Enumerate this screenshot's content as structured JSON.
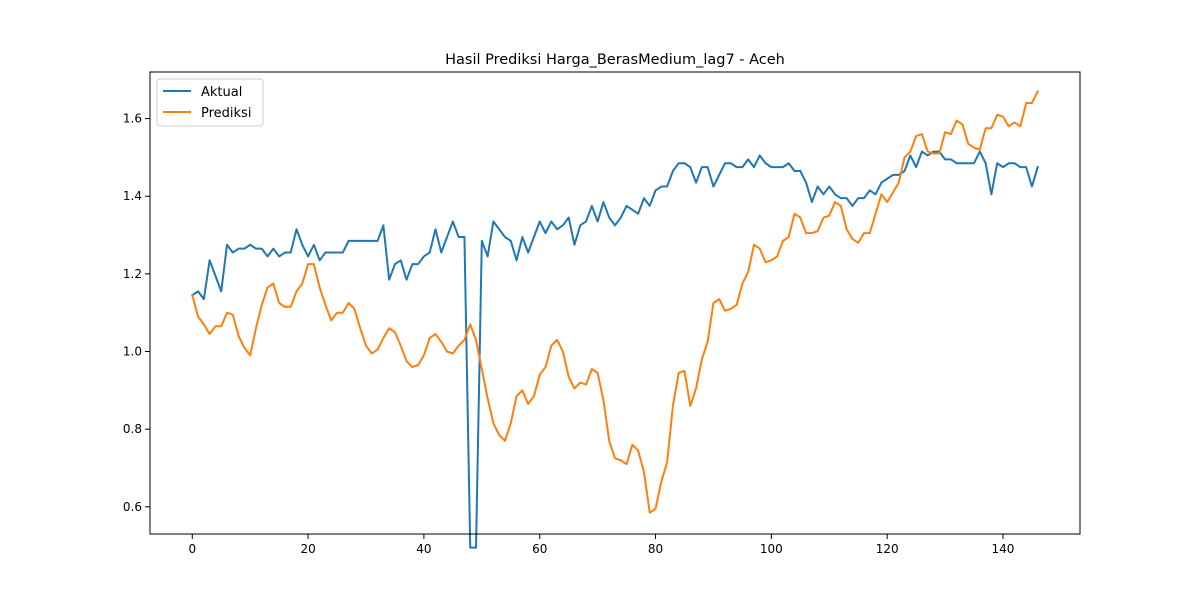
{
  "chart_data": {
    "type": "line",
    "title": "Hasil Prediksi Harga_BerasMedium_lag7 - Aceh",
    "xlabel": "",
    "ylabel": "",
    "xlim": [
      -7.3,
      153.3
    ],
    "ylim": [
      0.53,
      1.72
    ],
    "xticks": [
      0,
      20,
      40,
      60,
      80,
      100,
      120,
      140
    ],
    "yticks": [
      0.6,
      0.8,
      1.0,
      1.2,
      1.4,
      1.6
    ],
    "ytick_labels": [
      "0.6",
      "0.8",
      "1.0",
      "1.2",
      "1.4",
      "1.6"
    ],
    "grid": false,
    "legend_position": "top-left",
    "series": [
      {
        "name": "Aktual",
        "color": "#1f77b4",
        "values": [
          1.145,
          1.155,
          1.135,
          1.235,
          1.195,
          1.155,
          1.275,
          1.255,
          1.265,
          1.265,
          1.275,
          1.265,
          1.265,
          1.245,
          1.265,
          1.245,
          1.255,
          1.255,
          1.315,
          1.275,
          1.245,
          1.275,
          1.235,
          1.255,
          1.255,
          1.255,
          1.255,
          1.285,
          1.285,
          1.285,
          1.285,
          1.285,
          1.285,
          1.325,
          1.185,
          1.225,
          1.235,
          1.185,
          1.225,
          1.225,
          1.245,
          1.255,
          1.315,
          1.255,
          1.295,
          1.335,
          1.295,
          1.295,
          0.495,
          0.495,
          1.285,
          1.245,
          1.335,
          1.315,
          1.295,
          1.285,
          1.235,
          1.295,
          1.255,
          1.295,
          1.335,
          1.305,
          1.335,
          1.315,
          1.325,
          1.345,
          1.275,
          1.325,
          1.335,
          1.375,
          1.335,
          1.385,
          1.345,
          1.325,
          1.345,
          1.375,
          1.365,
          1.355,
          1.395,
          1.375,
          1.415,
          1.425,
          1.425,
          1.465,
          1.485,
          1.485,
          1.475,
          1.435,
          1.475,
          1.475,
          1.425,
          1.455,
          1.485,
          1.485,
          1.475,
          1.475,
          1.495,
          1.475,
          1.505,
          1.485,
          1.475,
          1.475,
          1.475,
          1.485,
          1.465,
          1.465,
          1.435,
          1.385,
          1.425,
          1.405,
          1.425,
          1.405,
          1.395,
          1.395,
          1.375,
          1.395,
          1.395,
          1.415,
          1.405,
          1.435,
          1.445,
          1.455,
          1.455,
          1.465,
          1.505,
          1.475,
          1.515,
          1.505,
          1.515,
          1.515,
          1.495,
          1.495,
          1.485,
          1.485,
          1.485,
          1.485,
          1.515,
          1.485,
          1.405,
          1.485,
          1.475,
          1.485,
          1.485,
          1.475,
          1.475,
          1.425,
          1.475
        ]
      },
      {
        "name": "Prediksi",
        "color": "#ff7f0e",
        "values": [
          1.145,
          1.09,
          1.07,
          1.045,
          1.065,
          1.065,
          1.1,
          1.095,
          1.04,
          1.01,
          0.99,
          1.06,
          1.12,
          1.165,
          1.175,
          1.125,
          1.115,
          1.115,
          1.155,
          1.175,
          1.225,
          1.225,
          1.165,
          1.12,
          1.08,
          1.1,
          1.1,
          1.125,
          1.11,
          1.06,
          1.015,
          0.995,
          1.005,
          1.035,
          1.06,
          1.05,
          1.015,
          0.975,
          0.96,
          0.965,
          0.99,
          1.035,
          1.045,
          1.025,
          1.0,
          0.995,
          1.015,
          1.03,
          1.07,
          1.03,
          0.955,
          0.88,
          0.815,
          0.785,
          0.77,
          0.815,
          0.885,
          0.9,
          0.865,
          0.885,
          0.94,
          0.96,
          1.015,
          1.03,
          1.0,
          0.935,
          0.905,
          0.92,
          0.915,
          0.955,
          0.945,
          0.875,
          0.77,
          0.725,
          0.72,
          0.71,
          0.76,
          0.745,
          0.69,
          0.585,
          0.595,
          0.665,
          0.715,
          0.86,
          0.945,
          0.95,
          0.86,
          0.905,
          0.98,
          1.025,
          1.125,
          1.135,
          1.105,
          1.11,
          1.12,
          1.175,
          1.205,
          1.275,
          1.265,
          1.23,
          1.235,
          1.245,
          1.285,
          1.295,
          1.355,
          1.345,
          1.305,
          1.305,
          1.31,
          1.345,
          1.35,
          1.385,
          1.375,
          1.315,
          1.29,
          1.28,
          1.305,
          1.305,
          1.355,
          1.405,
          1.385,
          1.41,
          1.435,
          1.5,
          1.515,
          1.555,
          1.56,
          1.515,
          1.51,
          1.51,
          1.565,
          1.56,
          1.595,
          1.585,
          1.535,
          1.525,
          1.52,
          1.575,
          1.575,
          1.61,
          1.605,
          1.58,
          1.59,
          1.58,
          1.64,
          1.64,
          1.67
        ]
      }
    ]
  }
}
